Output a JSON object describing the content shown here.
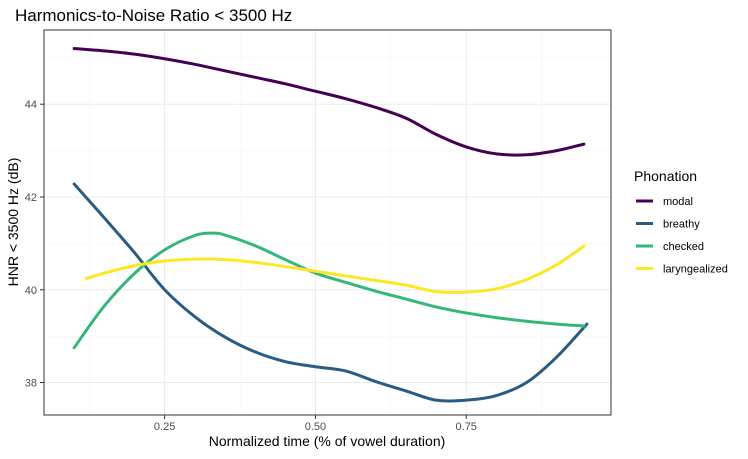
{
  "chart_data": {
    "type": "line",
    "title": "Harmonics-to-Noise Ratio < 3500 Hz",
    "xlabel": "Normalized time (% of vowel duration)",
    "ylabel": "HNR < 3500 Hz (dB)",
    "xlim": [
      0.05,
      0.99
    ],
    "ylim": [
      37.3,
      45.6
    ],
    "x_ticks": [
      0.25,
      0.5,
      0.75
    ],
    "x_tick_labels": [
      "0.25",
      "0.50",
      "0.75"
    ],
    "y_ticks": [
      38,
      40,
      42,
      44
    ],
    "y_tick_labels": [
      "38",
      "40",
      "42",
      "44"
    ],
    "grid": true,
    "legend": {
      "title": "Phonation",
      "position": "right"
    },
    "series": [
      {
        "name": "modal",
        "color": "#440154",
        "x": [
          0.1,
          0.15,
          0.2,
          0.25,
          0.3,
          0.35,
          0.4,
          0.45,
          0.5,
          0.55,
          0.6,
          0.65,
          0.7,
          0.75,
          0.8,
          0.85,
          0.9,
          0.945
        ],
        "y": [
          45.2,
          45.15,
          45.08,
          44.98,
          44.86,
          44.72,
          44.58,
          44.44,
          44.28,
          44.12,
          43.93,
          43.7,
          43.35,
          43.08,
          42.93,
          42.91,
          43.0,
          43.14
        ]
      },
      {
        "name": "breathy",
        "color": "#2a5c83",
        "x": [
          0.1,
          0.15,
          0.2,
          0.25,
          0.3,
          0.35,
          0.4,
          0.45,
          0.5,
          0.55,
          0.6,
          0.65,
          0.7,
          0.75,
          0.8,
          0.85,
          0.9,
          0.95
        ],
        "y": [
          42.28,
          41.55,
          40.8,
          40.0,
          39.42,
          38.98,
          38.66,
          38.45,
          38.34,
          38.25,
          38.02,
          37.82,
          37.62,
          37.62,
          37.72,
          38.0,
          38.55,
          39.26
        ]
      },
      {
        "name": "checked",
        "color": "#35b779",
        "x": [
          0.1,
          0.15,
          0.2,
          0.25,
          0.3,
          0.33,
          0.35,
          0.4,
          0.45,
          0.5,
          0.55,
          0.6,
          0.65,
          0.7,
          0.75,
          0.8,
          0.85,
          0.9,
          0.945
        ],
        "y": [
          38.75,
          39.65,
          40.35,
          40.86,
          41.17,
          41.22,
          41.18,
          40.95,
          40.65,
          40.36,
          40.16,
          39.97,
          39.8,
          39.63,
          39.5,
          39.4,
          39.32,
          39.26,
          39.22
        ]
      },
      {
        "name": "laryngealized",
        "color": "#fde725",
        "x": [
          0.12,
          0.15,
          0.2,
          0.25,
          0.3,
          0.35,
          0.4,
          0.45,
          0.5,
          0.55,
          0.6,
          0.65,
          0.7,
          0.75,
          0.8,
          0.85,
          0.9,
          0.945
        ],
        "y": [
          40.24,
          40.36,
          40.52,
          40.62,
          40.66,
          40.65,
          40.59,
          40.5,
          40.4,
          40.3,
          40.2,
          40.1,
          39.96,
          39.95,
          40.02,
          40.22,
          40.54,
          40.94
        ]
      }
    ]
  }
}
